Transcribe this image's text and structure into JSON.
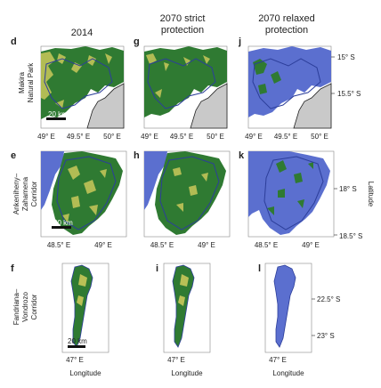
{
  "columns": [
    "2014",
    [
      "2070 strict",
      "protection"
    ],
    [
      "2070 relaxed",
      "protection"
    ]
  ],
  "rows": [
    {
      "label": [
        "Makira",
        "Natural Park"
      ],
      "panels": [
        "d",
        "g",
        "j"
      ],
      "x_ticks": [
        "49° E",
        "49.5° E",
        "50° E"
      ],
      "lat_ticks": [
        "15° S",
        "15.5° S"
      ],
      "scale_label": "20 km"
    },
    {
      "label": [
        "Ankeniheny–",
        "Zahamena",
        "Corridor"
      ],
      "panels": [
        "e",
        "h",
        "k"
      ],
      "x_ticks": [
        "48.5° E",
        "49° E"
      ],
      "lat_ticks": [
        "18° S",
        "18.5° S"
      ],
      "scale_label": "20 km"
    },
    {
      "label": [
        "Fandriana–",
        "Vondrozo",
        "Corridor"
      ],
      "panels": [
        "f",
        "i",
        "l"
      ],
      "x_ticks": [
        "47° E"
      ],
      "lat_ticks": [
        "22.5° S",
        "23° S"
      ],
      "scale_label": "20 km"
    }
  ],
  "x_axis_title": "Longitude",
  "y_axis_title": "Latitude",
  "colors": {
    "forest": "#2f7a32",
    "degraded": "#c9c85a",
    "cleared": "#5b6fcf",
    "protected_outline": "#2c3e9a",
    "ocean": "#c9c9c9",
    "background": "#ffffff"
  }
}
